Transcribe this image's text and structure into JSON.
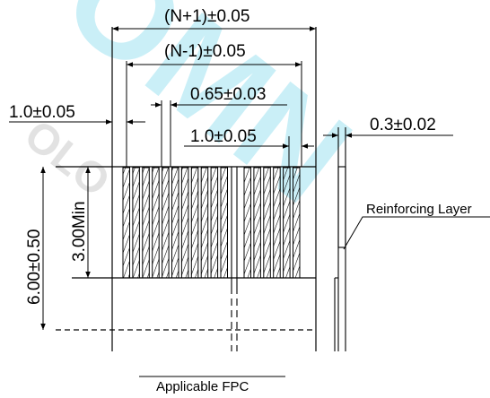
{
  "watermark": {
    "text_main": "OMN",
    "text_sub": "OLO",
    "color_main": "#9fe3f2",
    "color_sub": "#c7c7c7"
  },
  "dimensions": {
    "overall_width": "(N+1)±0.05",
    "pitch_span": "(N-1)±0.05",
    "pad_width": "0.65±0.03",
    "pitch": "1.0±0.05",
    "edge_offset": "1.0±0.05",
    "thickness": "0.3±0.02",
    "pad_length": "3.00Min",
    "total_length": "6.00±0.50"
  },
  "labels": {
    "reinforcing_layer": "Reinforcing Layer",
    "caption": "Applicable FPC"
  },
  "colors": {
    "line": "#000000",
    "background": "#ffffff"
  },
  "pads": {
    "left_group_count": 11,
    "right_group_count": 6
  }
}
